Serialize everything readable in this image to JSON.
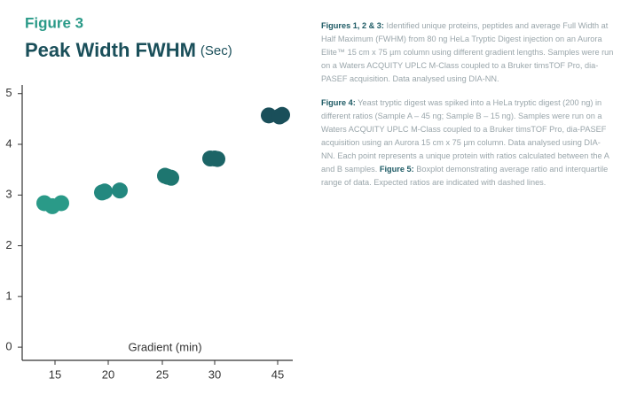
{
  "chart_data": {
    "type": "scatter",
    "figure_label": "Figure 3",
    "title": "Peak Width FWHM",
    "title_unit": "(Sec)",
    "xlabel": "Gradient (min)",
    "categories": [
      "15",
      "20",
      "25",
      "30",
      "45"
    ],
    "values": [
      [
        2.84,
        2.78,
        2.84
      ],
      [
        3.05,
        3.07,
        3.09
      ],
      [
        3.38,
        3.34,
        3.36
      ],
      [
        3.72,
        3.71,
        3.72
      ],
      [
        4.57,
        4.55,
        4.58
      ]
    ],
    "colors": [
      "#2a9a88",
      "#23887f",
      "#1e7670",
      "#1c6466",
      "#1a4f5a"
    ],
    "ylim": [
      -0.26,
      5.17
    ],
    "yticks": [
      0,
      1,
      2,
      3,
      4,
      5
    ]
  },
  "notes": [
    {
      "heading": "Figures 1, 2 & 3:",
      "text": "Identified unique proteins, peptides and average Full Width at Half Maximum (FWHM) from 80 ng HeLa Tryptic Digest injection on an Aurora Elite™ 15 cm x 75 µm column using different gradient lengths. Samples were run on a Waters ACQUITY UPLC M-Class coupled to a Bruker timsTOF Pro, dia-PASEF acquisition. Data analysed using DIA-NN."
    },
    {
      "heading": "Figure 4:",
      "text": "Yeast tryptic digest was spiked into a HeLa tryptic digest (200 ng) in different ratios (Sample A – 45 ng; Sample B – 15 ng). Samples were run on a Waters ACQUITY UPLC M-Class coupled to a Bruker timsTOF Pro, dia-PASEF acquisition using an Aurora 15 cm x 75 µm column. Data analysed using DIA-NN. Each point represents a unique protein with ratios calculated between the A and B samples.",
      "heading2": "Figure 5:",
      "text2": "Boxplot demonstrating average ratio and interquartile range of data. Expected ratios are indicated with dashed lines."
    }
  ]
}
